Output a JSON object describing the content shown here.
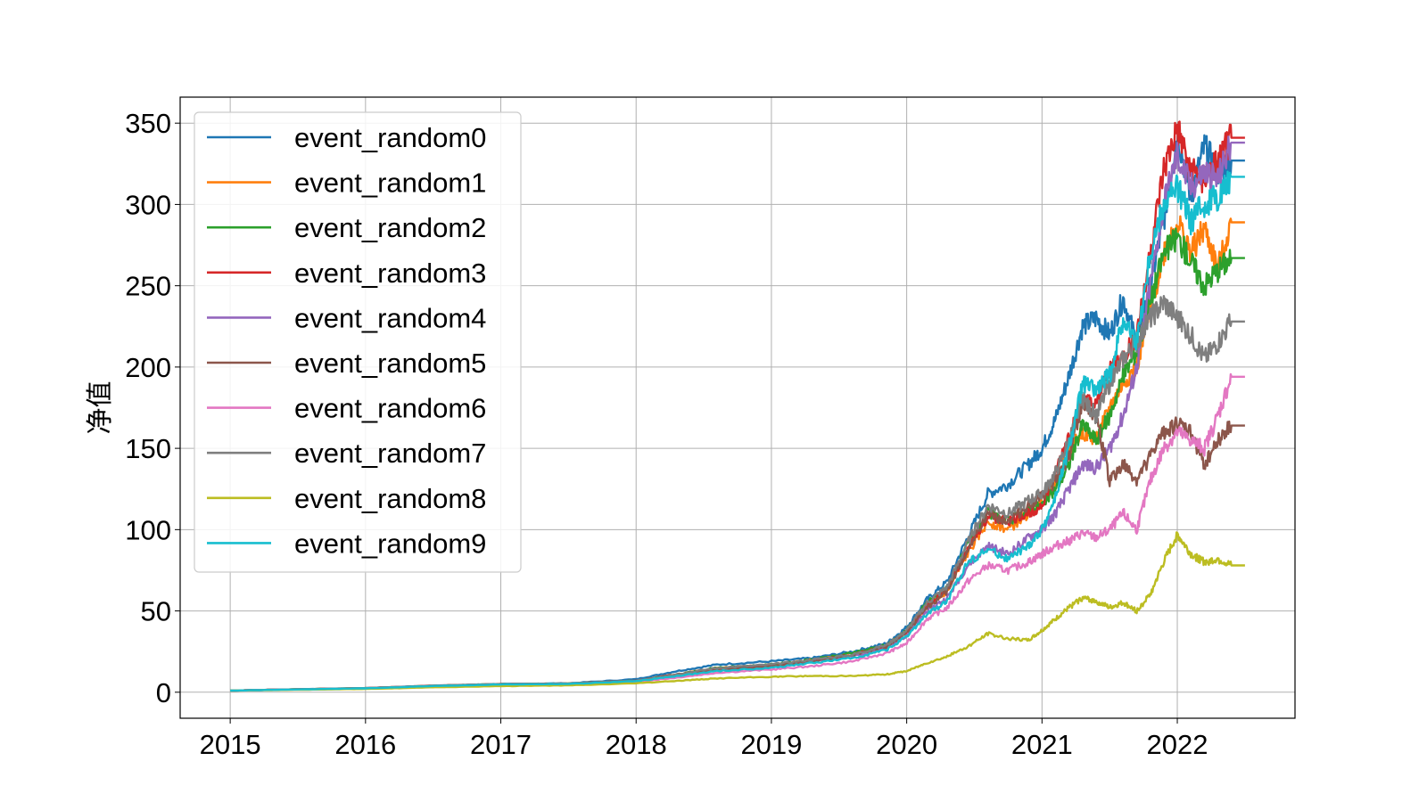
{
  "chart_data": {
    "type": "line",
    "title": "",
    "xlabel": "",
    "ylabel": "净值",
    "x_ticks": [
      "2015",
      "2016",
      "2017",
      "2018",
      "2019",
      "2020",
      "2021",
      "2022"
    ],
    "y_ticks": [
      "0",
      "50",
      "100",
      "150",
      "200",
      "250",
      "300",
      "350"
    ],
    "xlim": [
      2014.63,
      2022.87
    ],
    "ylim": [
      -16,
      366
    ],
    "grid": true,
    "legend_position": "upper-left",
    "x": [
      2015.0,
      2015.5,
      2016.0,
      2016.5,
      2017.0,
      2017.5,
      2018.0,
      2018.3,
      2018.6,
      2019.0,
      2019.3,
      2019.6,
      2019.85,
      2020.0,
      2020.15,
      2020.3,
      2020.45,
      2020.6,
      2020.75,
      2020.9,
      2021.0,
      2021.1,
      2021.2,
      2021.3,
      2021.4,
      2021.5,
      2021.6,
      2021.7,
      2021.8,
      2021.9,
      2022.0,
      2022.1,
      2022.2,
      2022.3,
      2022.4,
      2022.5
    ],
    "series": [
      {
        "name": "event_random0",
        "color": "#1f77b4",
        "values": [
          1,
          1.8,
          2.5,
          4,
          5,
          5.5,
          8,
          13,
          17,
          19,
          21,
          25,
          30,
          40,
          57,
          68,
          95,
          122,
          128,
          140,
          150,
          168,
          195,
          225,
          230,
          220,
          242,
          215,
          250,
          290,
          345,
          305,
          335,
          320,
          327,
          327
        ]
      },
      {
        "name": "event_random1",
        "color": "#ff7f0e",
        "values": [
          1,
          1.8,
          2.5,
          4,
          5,
          5.3,
          7,
          11,
          15,
          17,
          20,
          23,
          28,
          37,
          52,
          62,
          85,
          105,
          100,
          110,
          118,
          130,
          148,
          160,
          155,
          175,
          190,
          200,
          235,
          270,
          290,
          270,
          285,
          260,
          289,
          289
        ]
      },
      {
        "name": "event_random2",
        "color": "#2ca02c",
        "values": [
          1,
          1.8,
          2.5,
          4,
          5,
          5.3,
          7,
          11,
          15,
          17,
          20,
          24,
          29,
          38,
          55,
          64,
          90,
          110,
          105,
          112,
          115,
          125,
          140,
          165,
          155,
          170,
          195,
          210,
          240,
          270,
          280,
          265,
          250,
          260,
          267,
          267
        ]
      },
      {
        "name": "event_random3",
        "color": "#d62728",
        "values": [
          1,
          1.8,
          2.5,
          4,
          5,
          5.3,
          7,
          11,
          14,
          16,
          19,
          23,
          28,
          37,
          53,
          63,
          88,
          108,
          105,
          110,
          115,
          135,
          158,
          180,
          175,
          200,
          205,
          220,
          270,
          320,
          345,
          320,
          315,
          325,
          341,
          341
        ]
      },
      {
        "name": "event_random4",
        "color": "#9467bd",
        "values": [
          1,
          1.8,
          2.5,
          4,
          5,
          5.2,
          7,
          10,
          14,
          16,
          19,
          22,
          27,
          35,
          50,
          58,
          78,
          90,
          85,
          95,
          100,
          110,
          125,
          140,
          138,
          150,
          170,
          200,
          250,
          300,
          330,
          310,
          320,
          315,
          338,
          338
        ]
      },
      {
        "name": "event_random5",
        "color": "#8c564b",
        "values": [
          1,
          1.8,
          2.5,
          4,
          5,
          5.3,
          7,
          11,
          14,
          16,
          19,
          23,
          28,
          37,
          52,
          62,
          88,
          110,
          105,
          115,
          120,
          130,
          145,
          180,
          170,
          130,
          140,
          130,
          145,
          160,
          165,
          160,
          140,
          155,
          164,
          164
        ]
      },
      {
        "name": "event_random6",
        "color": "#e377c2",
        "values": [
          1,
          1.7,
          2.3,
          3.5,
          4.5,
          5,
          6.5,
          9,
          12,
          14,
          16,
          19,
          24,
          30,
          45,
          52,
          68,
          78,
          75,
          80,
          85,
          90,
          93,
          98,
          95,
          100,
          110,
          100,
          130,
          150,
          160,
          155,
          150,
          170,
          194,
          194
        ]
      },
      {
        "name": "event_random7",
        "color": "#7f7f7f",
        "values": [
          1,
          1.8,
          2.5,
          4,
          5,
          5.3,
          7,
          11,
          15,
          17,
          20,
          23,
          29,
          38,
          55,
          65,
          92,
          115,
          110,
          118,
          122,
          135,
          155,
          180,
          170,
          190,
          205,
          215,
          230,
          240,
          230,
          220,
          205,
          215,
          228,
          228
        ]
      },
      {
        "name": "event_random8",
        "color": "#bcbd22",
        "values": [
          1,
          1.5,
          2,
          3,
          3.8,
          4.2,
          5.5,
          7,
          8.5,
          9.5,
          10,
          10,
          11,
          13,
          18,
          22,
          28,
          36,
          33,
          32,
          38,
          45,
          52,
          58,
          56,
          52,
          55,
          50,
          60,
          80,
          97,
          85,
          80,
          82,
          78,
          78
        ]
      },
      {
        "name": "event_random9",
        "color": "#17becf",
        "values": [
          1,
          1.7,
          2.4,
          3.8,
          4.8,
          5.1,
          6.8,
          10,
          13,
          15,
          18,
          21,
          26,
          34,
          48,
          56,
          80,
          88,
          82,
          90,
          100,
          120,
          150,
          190,
          185,
          195,
          230,
          215,
          270,
          300,
          310,
          290,
          300,
          305,
          317,
          317
        ]
      }
    ]
  }
}
